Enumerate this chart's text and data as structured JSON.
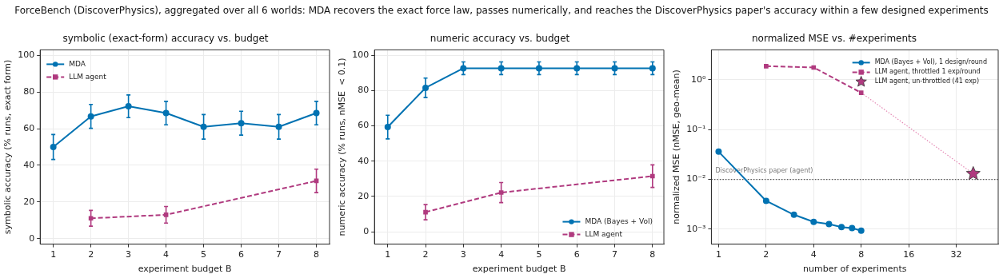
{
  "chart_data": [
    {
      "type": "line",
      "annotations": [
        "ForceBench (DiscoverPhysics), aggregated over all 6 worlds: MDA recovers the exact force law, passes numerically, and reaches the DiscoverPhysics paper's accuracy within a few designed experiments"
      ],
      "title": "symbolic (exact-form) accuracy vs. budget",
      "xlabel": "experiment budget B",
      "ylabel": "symbolic accuracy (% runs, exact form)",
      "xlim": [
        0.65,
        8.35
      ],
      "xticks": [
        1,
        2,
        3,
        4,
        5,
        6,
        7,
        8
      ],
      "ylim": [
        -3,
        103
      ],
      "yticks": [
        0,
        20,
        40,
        60,
        80,
        100
      ],
      "grid": true,
      "legend": "top left",
      "series": [
        {
          "name": "MDA",
          "color": "#0072b2",
          "marker": "circle",
          "line_style": "solid",
          "x": [
            1,
            2,
            3,
            4,
            5,
            6,
            7,
            8
          ],
          "values": [
            50,
            66.7,
            72.2,
            68.5,
            61,
            63,
            61,
            68.5
          ],
          "errors": [
            6.8,
            6.5,
            6.2,
            6.4,
            6.7,
            6.5,
            6.7,
            6.4
          ]
        },
        {
          "name": "LLM agent",
          "color": "#b03a7f",
          "marker": "square",
          "line_style": "dashed",
          "x": [
            2,
            4,
            8
          ],
          "values": [
            11.1,
            13,
            31.5
          ],
          "errors": [
            4.3,
            4.5,
            6.4
          ]
        }
      ]
    },
    {
      "type": "line",
      "title": "numeric accuracy vs. budget",
      "xlabel": "experiment budget B",
      "ylabel": "numeric accuracy (% runs, nMSE  < 0.1)",
      "xlim": [
        0.65,
        8.3
      ],
      "xticks": [
        1,
        2,
        3,
        4,
        5,
        6,
        7,
        8
      ],
      "ylim": [
        -7,
        103
      ],
      "yticks": [
        0,
        20,
        40,
        60,
        80,
        100
      ],
      "grid": true,
      "legend": "bottom right",
      "series": [
        {
          "name": "MDA (Bayes + Vol)",
          "color": "#0072b2",
          "marker": "circle",
          "line_style": "solid",
          "x": [
            1,
            2,
            3,
            4,
            5,
            6,
            7,
            8
          ],
          "values": [
            59.3,
            81.5,
            92.6,
            92.6,
            92.6,
            92.6,
            92.6,
            92.6
          ],
          "errors": [
            6.7,
            5.5,
            3.6,
            3.6,
            3.6,
            3.6,
            3.6,
            3.6
          ]
        },
        {
          "name": "LLM agent",
          "color": "#b03a7f",
          "marker": "square",
          "line_style": "dashed",
          "x": [
            2,
            4,
            8
          ],
          "values": [
            11.1,
            22.2,
            31.5
          ],
          "errors": [
            4.3,
            5.7,
            6.4
          ]
        }
      ]
    },
    {
      "type": "line",
      "title": "normalized MSE vs. #experiments",
      "xlabel": "number of experiments",
      "ylabel": "normalized MSE (nMSE, geo-mean)",
      "log": "xy",
      "xlim": [
        0.9,
        59
      ],
      "xticks": [
        1,
        2,
        4,
        8,
        16,
        32
      ],
      "ylim": [
        0.0005,
        4
      ],
      "yticks": [
        {
          "value": 0.001,
          "label": "10⁻³"
        },
        {
          "value": 0.01,
          "label": "10⁻²"
        },
        {
          "value": 0.1,
          "label": "10⁻¹"
        },
        {
          "value": 1,
          "label": "10⁰"
        }
      ],
      "grid": true,
      "legend": "top right",
      "ref_lines": [
        {
          "axis": "y",
          "value": 0.01,
          "label": "DiscoverPhysics paper (agent)",
          "color": "#555555",
          "line_style": "dotted"
        }
      ],
      "series": [
        {
          "name": "MDA (Bayes + Vol), 1 design/round",
          "color": "#0072b2",
          "marker": "circle",
          "line_style": "solid",
          "x": [
            1,
            2,
            3,
            4,
            5,
            6,
            7,
            8
          ],
          "values": [
            0.036,
            0.0037,
            0.00195,
            0.0014,
            0.00126,
            0.0011,
            0.00105,
            0.00093
          ]
        },
        {
          "name": "LLM agent, throttled 1 exp/round",
          "color": "#b03a7f",
          "marker": "square",
          "line_style": "dashed",
          "x": [
            2,
            4,
            8
          ],
          "values": [
            1.88,
            1.77,
            0.55
          ]
        },
        {
          "type": "line",
          "color": "#e58ab5",
          "marker": "none",
          "line_style": "dotted",
          "x": [
            8,
            41
          ],
          "values": [
            0.55,
            0.013
          ]
        },
        {
          "type": "scatter",
          "name": "LLM agent, un-throttled (41 exp)",
          "color": "#b03a7f",
          "marker": "star",
          "x": [
            41
          ],
          "values": [
            0.013
          ]
        }
      ]
    }
  ]
}
